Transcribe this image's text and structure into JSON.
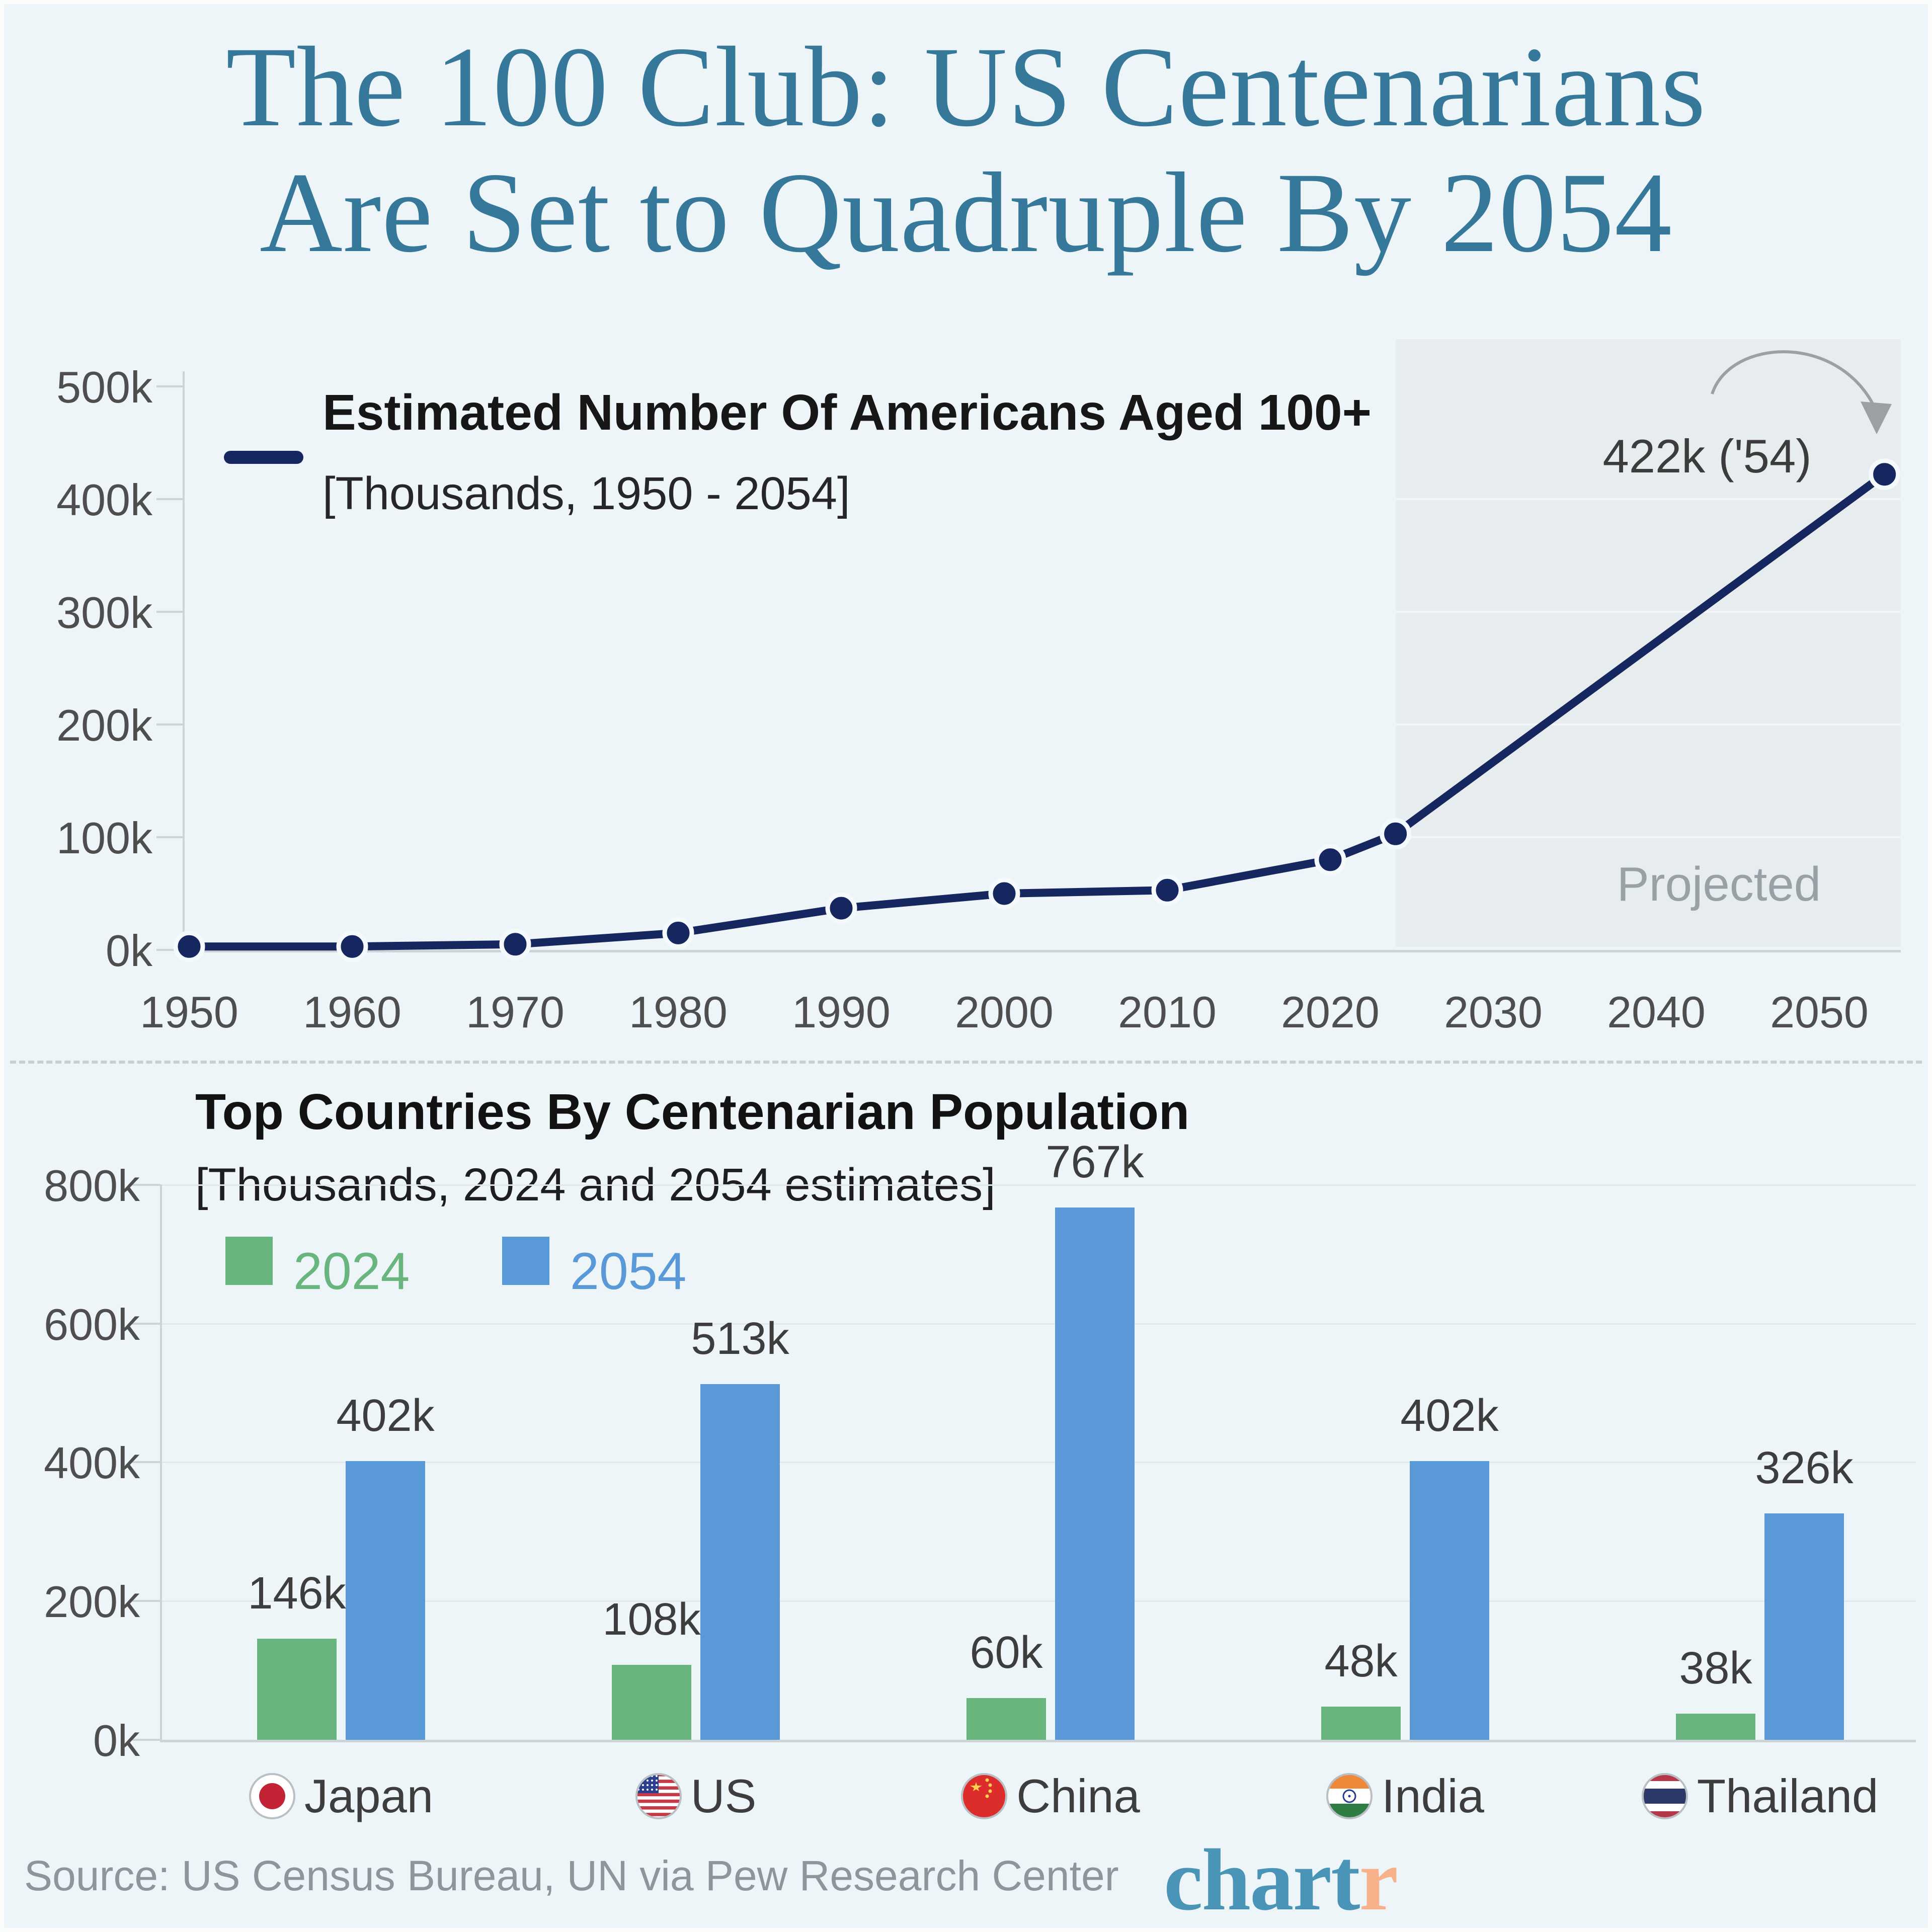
{
  "title": {
    "line1": "The 100 Club: US Centenarians",
    "line2": "Are Set to Quadruple By 2054"
  },
  "line_chart": {
    "legend_label": "Estimated Number Of Americans Aged 100+",
    "legend_sublabel": "[Thousands, 1950 - 2054]",
    "annotation": "422k ('54)",
    "projected_label": "Projected",
    "y_tick_labels": [
      "0k",
      "100k",
      "200k",
      "300k",
      "400k",
      "500k"
    ],
    "x_tick_labels": [
      "1950",
      "1960",
      "1970",
      "1980",
      "1990",
      "2000",
      "2010",
      "2020",
      "2030",
      "2040",
      "2050"
    ]
  },
  "bar_chart": {
    "title": "Top Countries By Centenarian Population",
    "subtitle": "[Thousands, 2024 and 2054 estimates]",
    "legend": [
      "2024",
      "2054"
    ],
    "y_tick_labels": [
      "0k",
      "200k",
      "400k",
      "600k",
      "800k"
    ]
  },
  "chart_data": [
    {
      "type": "line",
      "title": "Estimated Number Of Americans Aged 100+",
      "subtitle": "[Thousands, 1950 - 2054]",
      "x": [
        1950,
        1960,
        1970,
        1980,
        1990,
        2000,
        2010,
        2020,
        2024,
        2054
      ],
      "y_thousands": [
        3,
        3,
        5,
        15,
        37,
        50,
        53,
        80,
        103,
        422
      ],
      "ylim": [
        0,
        500
      ],
      "xlim": [
        1950,
        2054
      ],
      "y_unit": "thousands",
      "annotation": "422k ('54)",
      "annotation_target_x": 2054,
      "projected_from_x": 2024,
      "projected_label": "Projected",
      "legend_position": "top-left",
      "grid": "subtle"
    },
    {
      "type": "bar",
      "title": "Top Countries By Centenarian Population",
      "subtitle": "[Thousands, 2024 and 2054 estimates]",
      "categories": [
        "Japan",
        "US",
        "China",
        "India",
        "Thailand"
      ],
      "series": [
        {
          "name": "2024",
          "values": [
            146,
            108,
            60,
            48,
            38
          ],
          "labels": [
            "146k",
            "108k",
            "60k",
            "48k",
            "38k"
          ],
          "color": "#68b67d"
        },
        {
          "name": "2054",
          "values": [
            402,
            513,
            767,
            402,
            326
          ],
          "labels": [
            "402k",
            "513k",
            "767k",
            "402k",
            "326k"
          ],
          "color": "#5a99d8"
        }
      ],
      "ylim": [
        0,
        800
      ],
      "y_unit": "thousands",
      "grid": "on",
      "legend_position": "top-left"
    }
  ],
  "countries": [
    {
      "name": "Japan",
      "flag": "japan"
    },
    {
      "name": "US",
      "flag": "us"
    },
    {
      "name": "China",
      "flag": "china"
    },
    {
      "name": "India",
      "flag": "india"
    },
    {
      "name": "Thailand",
      "flag": "thailand"
    }
  ],
  "footer": {
    "source": "Source: US Census Bureau, UN via Pew Research Center",
    "logo_part1": "chart",
    "logo_part2": "r"
  },
  "colors": {
    "background": "#edf5f8",
    "title_teal": "#35789a",
    "line_navy": "#16265e",
    "bar_green": "#68b67d",
    "bar_blue": "#5a99d8",
    "projected_fill": "#e7ecee",
    "muted_gray": "#9aa1a6",
    "axis_gray": "#ccd4d8",
    "tick_text": "#4e4e4e",
    "source_gray": "#8e959b",
    "logo_teal": "#4a95b7",
    "logo_orange": "#f7b28c",
    "arrow_gray": "#9aa0a4"
  }
}
